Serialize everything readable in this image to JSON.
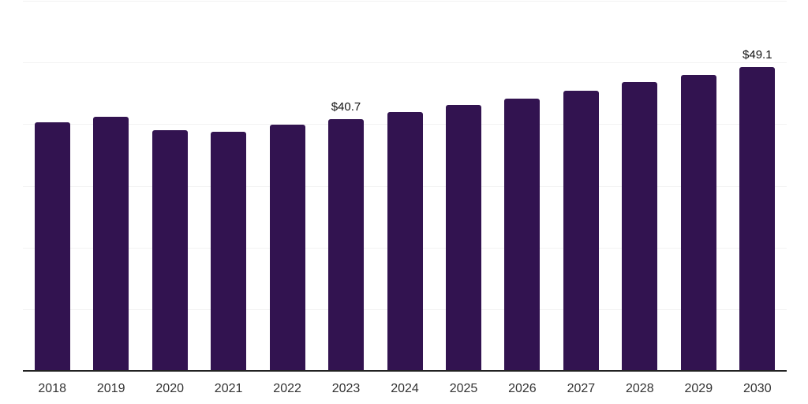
{
  "chart_data": {
    "type": "bar",
    "title": "",
    "xlabel": "",
    "ylabel": "",
    "categories": [
      "2018",
      "2019",
      "2020",
      "2021",
      "2022",
      "2023",
      "2024",
      "2025",
      "2026",
      "2027",
      "2028",
      "2029",
      "2030"
    ],
    "values": [
      40.2,
      41.1,
      38.9,
      38.7,
      39.8,
      40.7,
      41.8,
      43.0,
      44.0,
      45.3,
      46.7,
      47.8,
      49.1
    ],
    "data_labels": {
      "2023": "$40.7",
      "2030": "$49.1"
    },
    "ylim": [
      0,
      60
    ],
    "grid_step": 10,
    "grid": "on",
    "legend": "none",
    "y_tick_labels_visible": false
  },
  "colors": {
    "background": "#FFFFFF",
    "bar": "#321350",
    "gridline": "#F2F2F2",
    "axis_line": "#222222",
    "tick_label": "#333333",
    "value_label": "#111111"
  }
}
